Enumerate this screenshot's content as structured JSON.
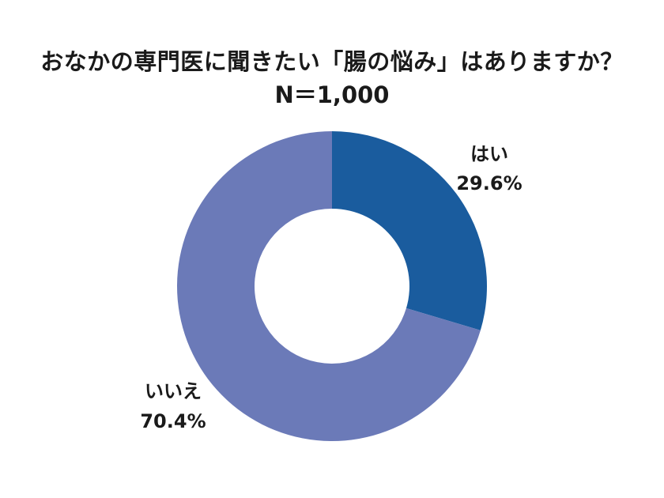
{
  "chart_data": {
    "type": "pie",
    "style": "donut",
    "title": "おなかの専門医に聞きたい「腸の悩み」はありますか？",
    "subtitle": "N＝1,000",
    "categories": [
      "はい",
      "いいえ"
    ],
    "values": [
      29.6,
      70.4
    ],
    "value_labels": [
      "29.6%",
      "70.4%"
    ],
    "colors": [
      "#1a5c9e",
      "#6b7ab8"
    ],
    "start_angle": "12 o'clock",
    "direction": "clockwise",
    "legend": "none"
  }
}
